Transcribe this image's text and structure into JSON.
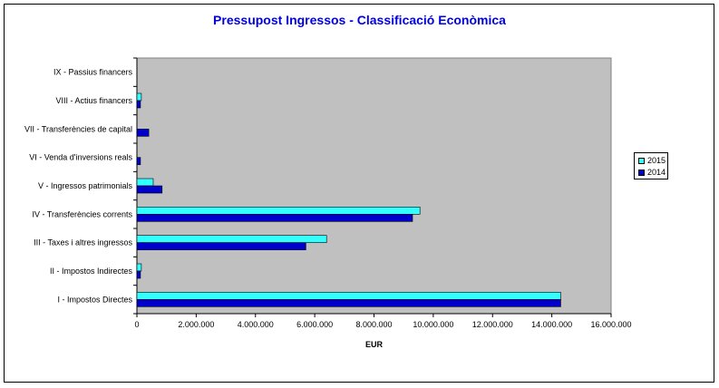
{
  "title": "Pressupost Ingressos - Classificació Econòmica",
  "colors": {
    "s2015": "#33ffff",
    "s2014": "#0000cc",
    "plot_bg": "#c0c0c0",
    "title": "#0000e0"
  },
  "chart_data": {
    "type": "bar",
    "orientation": "horizontal",
    "title": "Pressupost Ingressos - Classificació Econòmica",
    "xlabel": "EUR",
    "ylabel": "",
    "xlim": [
      0,
      16000000
    ],
    "grid": false,
    "legend_position": "right",
    "categories": [
      "IX - Passius financers",
      "VIII - Actius financers",
      "VII - Transferències de capital",
      "VI - Venda d'inversions reals",
      "V - Ingressos patrimonials",
      "IV - Transferències corrents",
      "III - Taxes i altres ingressos",
      "II - Impostos Indirectes",
      "I - Impostos Directes"
    ],
    "tick_labels": [
      "0",
      "2.000.000",
      "4.000.000",
      "6.000.000",
      "8.000.000",
      "10.000.000",
      "12.000.000",
      "14.000.000",
      "16.000.000"
    ],
    "tick_values": [
      0,
      2000000,
      4000000,
      6000000,
      8000000,
      10000000,
      12000000,
      14000000,
      16000000
    ],
    "series": [
      {
        "name": "2015",
        "values": [
          0,
          150000,
          0,
          0,
          550000,
          9550000,
          6400000,
          150000,
          14300000
        ]
      },
      {
        "name": "2014",
        "values": [
          0,
          120000,
          400000,
          120000,
          850000,
          9300000,
          5700000,
          120000,
          14300000
        ]
      }
    ]
  },
  "legend": {
    "item_2015": "2015",
    "item_2014": "2014"
  }
}
